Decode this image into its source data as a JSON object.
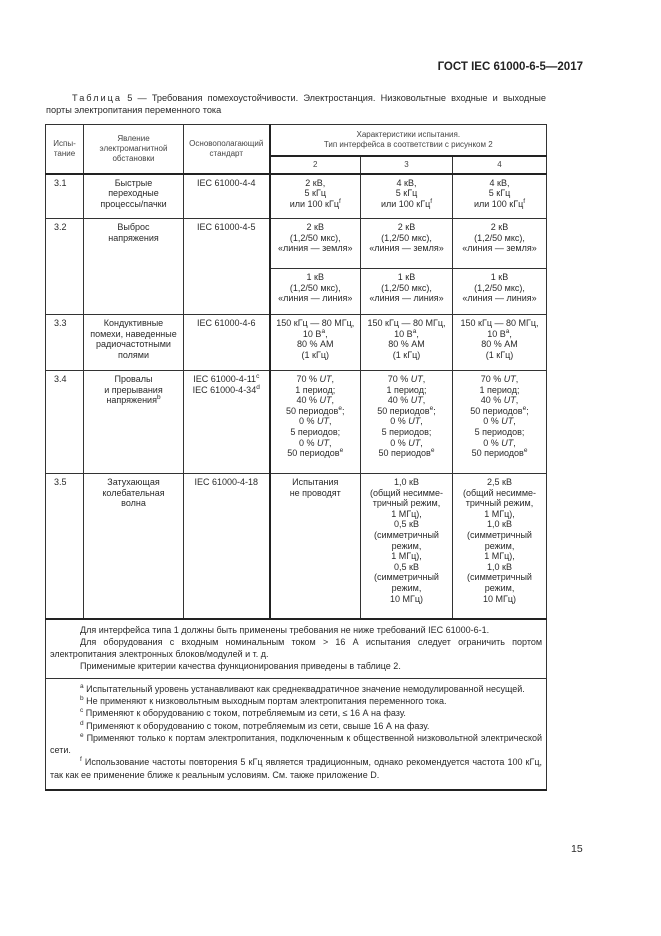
{
  "doc_header": "ГОСТ IEC 61000-6-5—2017",
  "caption": {
    "prefix": "Таблица",
    "text": " 5 — Требования помехоустойчивости. Электростанция. Низковольтные входные и выходные порты электропитания переменного тока"
  },
  "table": {
    "headers": {
      "test": "Испы-\nтание",
      "phenomenon": "Явление\nэлектромагнитной\nобстановки",
      "standard": "Основополагающий\nстандарт",
      "characteristics": "Характеристики испытания.\nТип интерфейса в соответствии с рисунком 2",
      "interfaces": [
        "2",
        "3",
        "4"
      ]
    },
    "rows": [
      {
        "test": "3.1",
        "phenomenon": [
          [
            [
              "Быстрые"
            ]
          ],
          [
            [
              "переходные"
            ]
          ],
          [
            [
              "процессы/пачки"
            ]
          ]
        ],
        "standard": [
          [
            [
              "IEC 61000-4-4"
            ]
          ]
        ],
        "values": [
          [
            [
              [
                "2 кВ,"
              ]
            ],
            [
              [
                "5 кГц"
              ]
            ],
            [
              [
                "или 100 кГц"
              ],
              [
                "f",
                "s"
              ]
            ]
          ],
          [
            [
              [
                "4 кВ,"
              ]
            ],
            [
              [
                "5 кГц"
              ]
            ],
            [
              [
                "или 100 кГц"
              ],
              [
                "f",
                "s"
              ]
            ]
          ],
          [
            [
              [
                "4 кВ,"
              ]
            ],
            [
              [
                "5 кГц"
              ]
            ],
            [
              [
                "или 100 кГц"
              ],
              [
                "f",
                "s"
              ]
            ]
          ]
        ]
      },
      {
        "test": "3.2",
        "phenomenon": [
          [
            [
              "Выброс"
            ]
          ],
          [
            [
              "напряжения"
            ]
          ]
        ],
        "standard": [
          [
            [
              "IEC 61000-4-5"
            ]
          ]
        ],
        "values": [
          [
            [
              [
                "2 кВ"
              ]
            ],
            [
              [
                "(1,2/50 мкс),"
              ]
            ],
            [
              [
                "«линия — земля»"
              ]
            ]
          ],
          [
            [
              [
                "2 кВ"
              ]
            ],
            [
              [
                "(1,2/50 мкс),"
              ]
            ],
            [
              [
                "«линия — земля»"
              ]
            ]
          ],
          [
            [
              [
                "2 кВ"
              ]
            ],
            [
              [
                "(1,2/50 мкс),"
              ]
            ],
            [
              [
                "«линия — земля»"
              ]
            ]
          ]
        ],
        "values2": [
          [
            [
              [
                "1 кВ"
              ]
            ],
            [
              [
                "(1,2/50 мкс),"
              ]
            ],
            [
              [
                "«линия — линия»"
              ]
            ]
          ],
          [
            [
              [
                "1 кВ"
              ]
            ],
            [
              [
                "(1,2/50 мкс),"
              ]
            ],
            [
              [
                "«линия — линия»"
              ]
            ]
          ],
          [
            [
              [
                "1 кВ"
              ]
            ],
            [
              [
                "(1,2/50 мкс),"
              ]
            ],
            [
              [
                "«линия — линия»"
              ]
            ]
          ]
        ]
      },
      {
        "test": "3.3",
        "phenomenon": [
          [
            [
              "Кондуктивные"
            ]
          ],
          [
            [
              "помехи, наведенные"
            ]
          ],
          [
            [
              "радиочастотными"
            ]
          ],
          [
            [
              "полями"
            ]
          ]
        ],
        "standard": [
          [
            [
              "IEC 61000-4-6"
            ]
          ]
        ],
        "values": [
          [
            [
              [
                "150 кГц — 80 МГц,"
              ]
            ],
            [
              [
                "10 В"
              ],
              [
                "a",
                "s"
              ],
              [
                ","
              ]
            ],
            [
              [
                "80 % АМ"
              ]
            ],
            [
              [
                "(1 кГц)"
              ]
            ]
          ],
          [
            [
              [
                "150 кГц — 80 МГц,"
              ]
            ],
            [
              [
                "10 В"
              ],
              [
                "a",
                "s"
              ],
              [
                ","
              ]
            ],
            [
              [
                "80 % АМ"
              ]
            ],
            [
              [
                "(1 кГц)"
              ]
            ]
          ],
          [
            [
              [
                "150 кГц — 80 МГц,"
              ]
            ],
            [
              [
                "10 В"
              ],
              [
                "a",
                "s"
              ],
              [
                ","
              ]
            ],
            [
              [
                "80 % АМ"
              ]
            ],
            [
              [
                "(1 кГц)"
              ]
            ]
          ]
        ]
      },
      {
        "test": "3.4",
        "phenomenon": [
          [
            [
              "Провалы"
            ]
          ],
          [
            [
              "и прерывания"
            ]
          ],
          [
            [
              "напряжения"
            ],
            [
              "b",
              "s"
            ]
          ]
        ],
        "standard": [
          [
            [
              "IEC 61000-4-11"
            ],
            [
              "c",
              "s"
            ]
          ],
          [
            [
              "IEC 61000-4-34"
            ],
            [
              "d",
              "s"
            ]
          ]
        ],
        "values": [
          [
            [
              [
                "70 % "
              ],
              [
                "UT",
                "i"
              ],
              [
                ","
              ]
            ],
            [
              [
                "1 период;"
              ]
            ],
            [
              [
                "40 % "
              ],
              [
                "UT",
                "i"
              ],
              [
                ","
              ]
            ],
            [
              [
                "50 периодов"
              ],
              [
                "e",
                "s"
              ],
              [
                ";"
              ]
            ],
            [
              [
                "0 % "
              ],
              [
                "UT",
                "i"
              ],
              [
                ","
              ]
            ],
            [
              [
                "5 периодов;"
              ]
            ],
            [
              [
                "0 % "
              ],
              [
                "UT",
                "i"
              ],
              [
                ","
              ]
            ],
            [
              [
                "50 периодов"
              ],
              [
                "e",
                "s"
              ]
            ]
          ],
          [
            [
              [
                "70 % "
              ],
              [
                "UT",
                "i"
              ],
              [
                ","
              ]
            ],
            [
              [
                "1 период;"
              ]
            ],
            [
              [
                "40 % "
              ],
              [
                "UT",
                "i"
              ],
              [
                ","
              ]
            ],
            [
              [
                "50 периодов"
              ],
              [
                "e",
                "s"
              ],
              [
                ";"
              ]
            ],
            [
              [
                "0 % "
              ],
              [
                "UT",
                "i"
              ],
              [
                ","
              ]
            ],
            [
              [
                "5 периодов;"
              ]
            ],
            [
              [
                "0 % "
              ],
              [
                "UT",
                "i"
              ],
              [
                ","
              ]
            ],
            [
              [
                "50 периодов"
              ],
              [
                "e",
                "s"
              ]
            ]
          ],
          [
            [
              [
                "70 % "
              ],
              [
                "UT",
                "i"
              ],
              [
                ","
              ]
            ],
            [
              [
                "1 период;"
              ]
            ],
            [
              [
                "40 % "
              ],
              [
                "UT",
                "i"
              ],
              [
                ","
              ]
            ],
            [
              [
                "50 периодов"
              ],
              [
                "e",
                "s"
              ],
              [
                ";"
              ]
            ],
            [
              [
                "0 % "
              ],
              [
                "UT",
                "i"
              ],
              [
                ","
              ]
            ],
            [
              [
                "5 периодов;"
              ]
            ],
            [
              [
                "0 % "
              ],
              [
                "UT",
                "i"
              ],
              [
                ","
              ]
            ],
            [
              [
                "50 периодов"
              ],
              [
                "e",
                "s"
              ]
            ]
          ]
        ]
      },
      {
        "test": "3.5",
        "phenomenon": [
          [
            [
              "Затухающая"
            ]
          ],
          [
            [
              "колебательная"
            ]
          ],
          [
            [
              "волна"
            ]
          ]
        ],
        "standard": [
          [
            [
              "IEC 61000-4-18"
            ]
          ]
        ],
        "values": [
          [
            [
              [
                "Испытания"
              ]
            ],
            [
              [
                "не проводят"
              ]
            ]
          ],
          [
            [
              [
                "1,0 кВ"
              ]
            ],
            [
              [
                "(общий несимме-"
              ]
            ],
            [
              [
                "тричный режим,"
              ]
            ],
            [
              [
                "1 МГц),"
              ]
            ],
            [
              [
                "0,5 кВ"
              ]
            ],
            [
              [
                "(симметричный"
              ]
            ],
            [
              [
                "режим,"
              ]
            ],
            [
              [
                "1 МГц),"
              ]
            ],
            [
              [
                "0,5 кВ"
              ]
            ],
            [
              [
                "(симметричный"
              ]
            ],
            [
              [
                "режим,"
              ]
            ],
            [
              [
                "10 МГц)"
              ]
            ]
          ],
          [
            [
              [
                "2,5 кВ"
              ]
            ],
            [
              [
                "(общий несимме-"
              ]
            ],
            [
              [
                "тричный режим,"
              ]
            ],
            [
              [
                "1 МГц),"
              ]
            ],
            [
              [
                "1,0 кВ"
              ]
            ],
            [
              [
                "(симметричный"
              ]
            ],
            [
              [
                "режим,"
              ]
            ],
            [
              [
                "1 МГц),"
              ]
            ],
            [
              [
                "1,0 кВ"
              ]
            ],
            [
              [
                "(симметричный"
              ]
            ],
            [
              [
                "режим,"
              ]
            ],
            [
              [
                "10 МГц)"
              ]
            ]
          ]
        ]
      }
    ],
    "notes": [
      "Для интерфейса типа 1 должны быть применены требования не ниже требований IEC 61000-6-1.",
      "Для оборудования с входным номинальным током > 16 А испытания следует ограничить портом электропитания электронных блоков/модулей и т. д.",
      "Применимые критерии качества функционирования приведены в таблице 2."
    ],
    "footnotes": [
      {
        "mark": "a",
        "text": " Испытательный уровень устанавливают как среднеквадратичное значение немодулированной несущей."
      },
      {
        "mark": "b",
        "text": " Не применяют к низковольтным выходным портам электропитания переменного тока."
      },
      {
        "mark": "c",
        "text": " Применяют к оборудованию с током, потребляемым из сети, ≤ 16 А на фазу."
      },
      {
        "mark": "d",
        "text": " Применяют к оборудованию с током, потребляемым из сети, свыше 16 А на фазу."
      },
      {
        "mark": "e",
        "text": " Применяют только к портам электропитания, подключенным к общественной низковольтной электрической сети."
      },
      {
        "mark": "f",
        "text": " Использование частоты повторения 5 кГц является традиционным, однако рекомендуется частота 100 кГц, так как ее применение ближе к реальным условиям. См. также приложение D."
      }
    ]
  },
  "page_number": "15"
}
